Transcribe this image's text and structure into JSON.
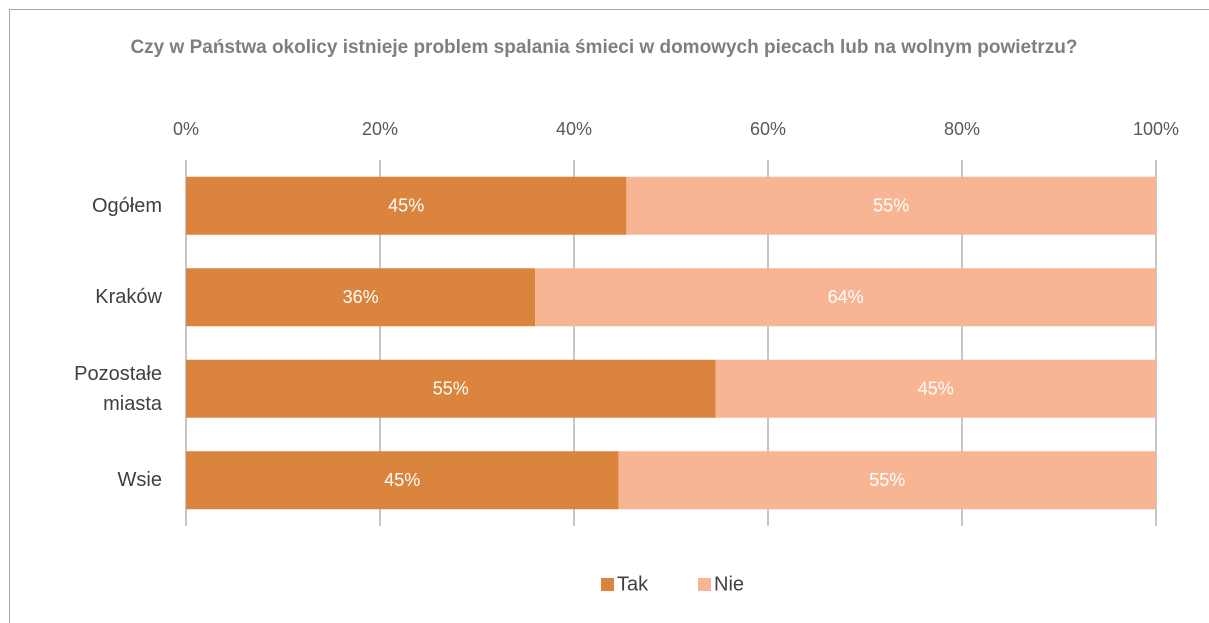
{
  "chart_data": {
    "type": "stacked-bar-horizontal",
    "title": "Czy w Państwa okolicy istnieje problem spalania śmieci w domowych piecach lub na wolnym powietrzu?",
    "categories": [
      "Ogółem",
      "Kraków",
      "Pozostałe miasta",
      "Wsie"
    ],
    "series": [
      {
        "name": "Tak",
        "color": "#db843e",
        "values": [
          45.4,
          36,
          54.6,
          44.6
        ],
        "value_labels": [
          "45%",
          "36%",
          "55%",
          "45%"
        ]
      },
      {
        "name": "Nie",
        "color": "#f8b593",
        "values": [
          54.6,
          64,
          45.4,
          55.4
        ],
        "value_labels": [
          "55%",
          "64%",
          "45%",
          "55%"
        ]
      }
    ],
    "xlim": [
      0,
      100
    ],
    "xticks": [
      {
        "value": 0,
        "label": "0%"
      },
      {
        "value": 20,
        "label": "20%"
      },
      {
        "value": 40,
        "label": "40%"
      },
      {
        "value": 60,
        "label": "60%"
      },
      {
        "value": 80,
        "label": "80%"
      },
      {
        "value": 100,
        "label": "100%"
      }
    ],
    "grid": true,
    "legend": "bottom"
  }
}
